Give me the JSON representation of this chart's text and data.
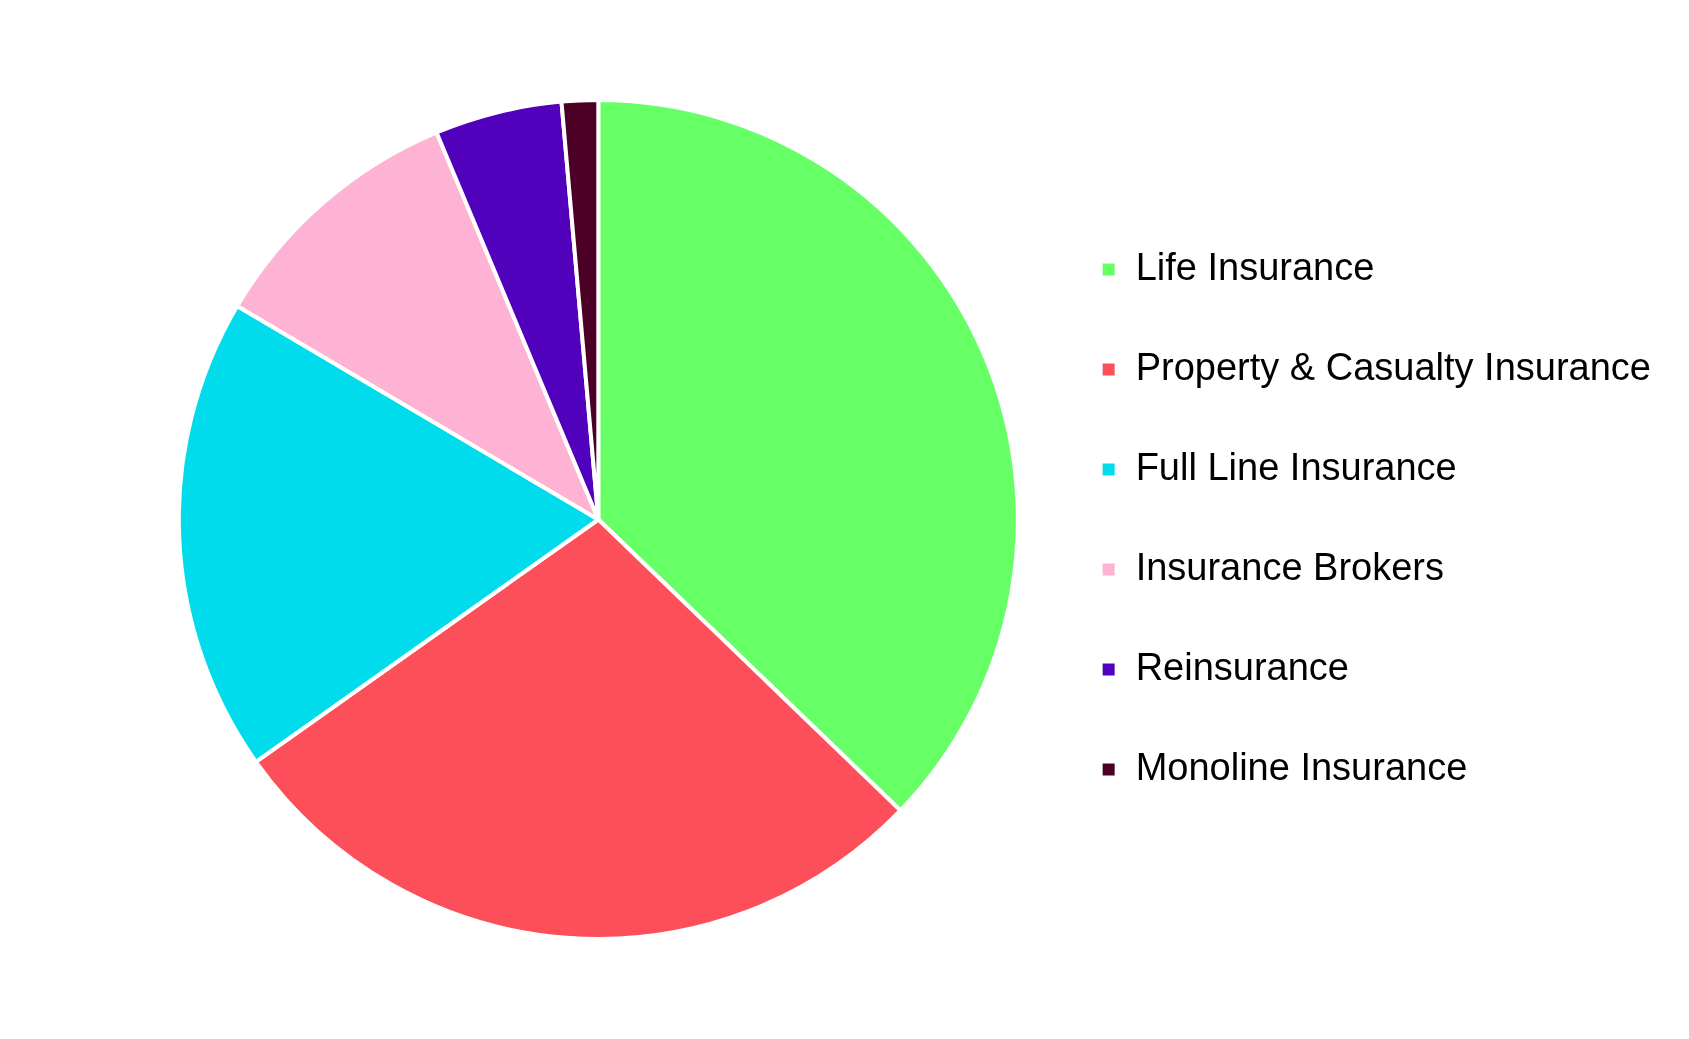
{
  "chart_data": {
    "type": "pie",
    "categories": [
      "Life Insurance",
      "Property & Casualty Insurance",
      "Full Line Insurance",
      "Insurance Brokers",
      "Reinsurance",
      "Monoline Insurance"
    ],
    "values": [
      37.2,
      28.0,
      18.3,
      10.2,
      4.9,
      1.4
    ],
    "colors": [
      "#66ff66",
      "#fc4f59",
      "#00dcec",
      "#ffb3d4",
      "#5100bb",
      "#4d0026"
    ],
    "legend": "right"
  }
}
